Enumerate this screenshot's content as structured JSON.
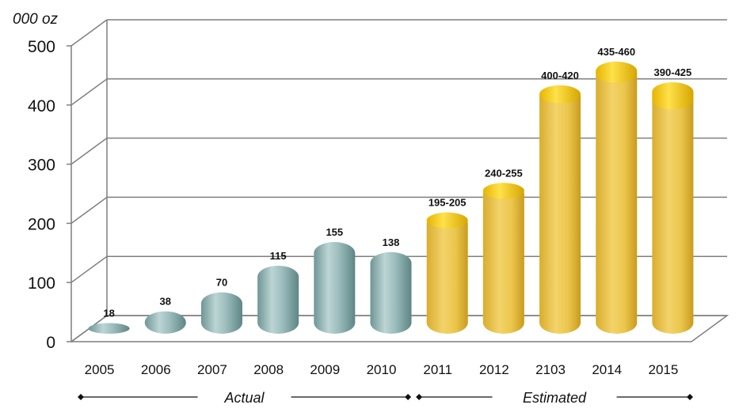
{
  "chart_data": {
    "type": "bar",
    "unit_label": "000 oz",
    "categories": [
      "2005",
      "2006",
      "2007",
      "2008",
      "2009",
      "2010",
      "2011",
      "2012",
      "2103",
      "2014",
      "2015"
    ],
    "values": [
      18,
      38,
      70,
      115,
      155,
      138,
      205,
      255,
      420,
      460,
      425
    ],
    "range_low": [
      null,
      null,
      null,
      null,
      null,
      null,
      195,
      240,
      400,
      435,
      390
    ],
    "data_labels": [
      "18",
      "38",
      "70",
      "115",
      "155",
      "138",
      "195-205",
      "240-255",
      "400-420",
      "435-460",
      "390-425"
    ],
    "ylim": [
      0,
      500
    ],
    "yticks": [
      "0",
      "100",
      "200",
      "300",
      "400",
      "500"
    ],
    "grid": true,
    "periods": [
      {
        "label": "Actual",
        "from": "2005",
        "to": "2010"
      },
      {
        "label": "Estimated",
        "from": "2011",
        "to": "2015"
      }
    ],
    "colors": {
      "actual": "#8fb3b3",
      "estimated": "#e8c14a",
      "estimated_range": "#f5cc00"
    }
  }
}
